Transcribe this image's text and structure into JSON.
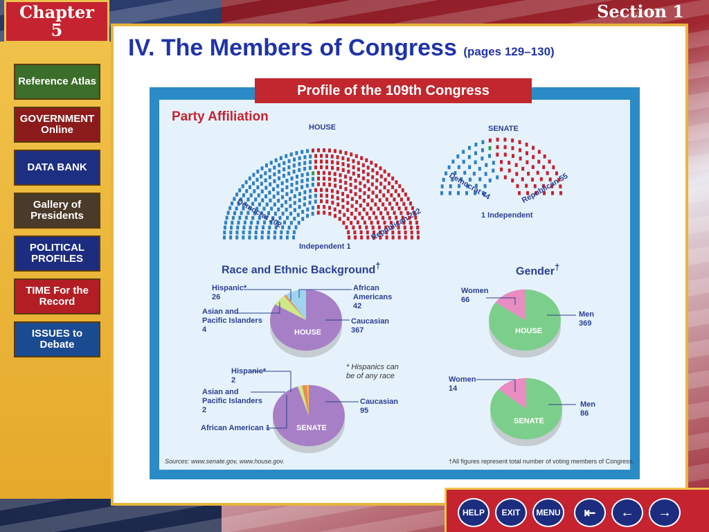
{
  "header": {
    "chapter": "Chapter",
    "chapter_num": "5",
    "section": "Section 1"
  },
  "sidebar": {
    "items": [
      {
        "label": "Reference Atlas",
        "color": "#3b6e2a"
      },
      {
        "label": "GOVERNMENT Online",
        "color": "#8c1c1c"
      },
      {
        "label": "DATA BANK",
        "color": "#1c2f80"
      },
      {
        "label": "Gallery of Presidents",
        "color": "#4a3a2a"
      },
      {
        "label": "POLITICAL PROFILES",
        "color": "#1c2c7e"
      },
      {
        "label": "TIME For the Record",
        "color": "#b21e24"
      },
      {
        "label": "ISSUES to Debate",
        "color": "#1a4a8f"
      }
    ]
  },
  "title": {
    "main": "IV. The Members of Congress",
    "pages": "(pages 129–130)"
  },
  "figure": {
    "banner": "Profile of the 109th Congress",
    "party_heading": "Party Affiliation",
    "house_label": "HOUSE",
    "senate_label": "SENATE",
    "house_dem": "Democrat 202",
    "house_rep": "Republican 232",
    "house_ind": "Independent 1",
    "senate_dem": "Democrat 44",
    "senate_rep": "Republican 55",
    "senate_ind": "1 Independent",
    "race_heading": "Race and Ethnic Background",
    "gender_heading": "Gender",
    "dagger": "†",
    "house_hisp": "Hispanic*",
    "house_hisp_n": "26",
    "house_asian": "Asian and Pacific Islanders",
    "house_asian_n": "4",
    "house_afr": "African Americans",
    "house_afr_n": "42",
    "house_cauc": "Caucasian",
    "house_cauc_n": "367",
    "pie_house": "HOUSE",
    "pie_senate": "SENATE",
    "hisp_note": "* Hispanics can be of any race",
    "sen_hisp": "Hispanic*",
    "sen_hisp_n": "2",
    "sen_asian": "Asian and Pacific Islanders",
    "sen_asian_n": "2",
    "sen_afr": "African American 1",
    "sen_cauc": "Caucasian",
    "sen_cauc_n": "95",
    "house_women": "Women",
    "house_women_n": "66",
    "house_men": "Men",
    "house_men_n": "369",
    "sen_women": "Women",
    "sen_women_n": "14",
    "sen_men": "Men",
    "sen_men_n": "86",
    "sources": "Sources: www.senate.gov, www.house.gov.",
    "footnote": "†All figures represent total number of voting members of Congress."
  },
  "nav": {
    "help": "HELP",
    "exit": "EXIT",
    "menu": "MENU"
  },
  "colors": {
    "dem": "#2f7fc1",
    "rep": "#c4232f",
    "ind": "#2e9a4a",
    "pie_purple": "#a77fc6",
    "pie_green": "#7ccf8a",
    "pie_pink": "#e88cc2"
  }
}
